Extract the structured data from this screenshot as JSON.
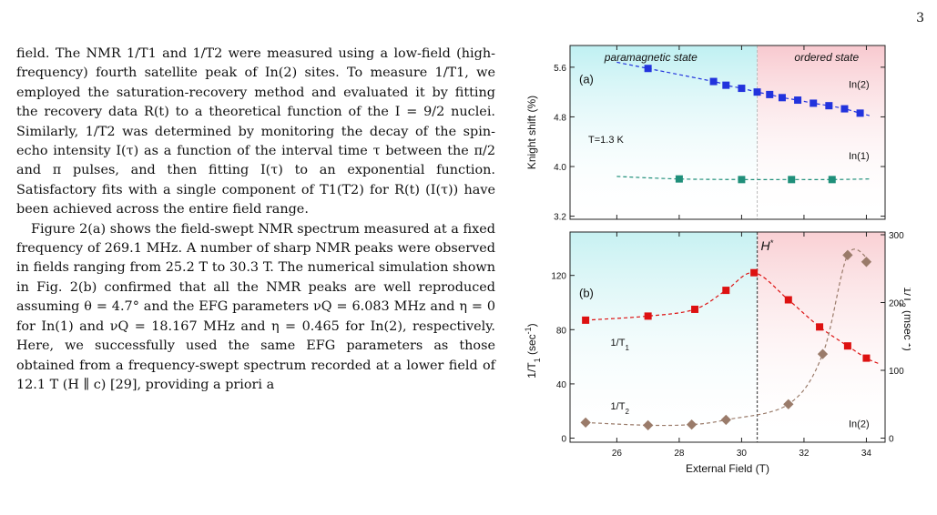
{
  "page_number": "3",
  "paragraphs": [
    "field. The NMR 1/T1 and 1/T2 were measured using a low-field (high-frequency) fourth satellite peak of In(2) sites. To measure 1/T1, we employed the saturation-recovery method and evaluated it by fitting the recovery data R(t) to a theoretical function of the I = 9/2 nuclei. Similarly, 1/T2 was determined by monitoring the decay of the spin-echo intensity I(τ) as a function of the interval time τ between the π/2 and π pulses, and then fitting I(τ) to an exponential function. Satisfactory fits with a single component of T1(T2) for R(t) (I(τ)) have been achieved across the entire field range.",
    "Figure 2(a) shows the field-swept NMR spectrum measured at a fixed frequency of 269.1 MHz. A number of sharp NMR peaks were observed in fields ranging from 25.2 T to 30.3 T. The numerical simulation shown in Fig. 2(b) confirmed that all the NMR peaks are well reproduced assuming θ = 4.7° and the EFG parameters νQ = 6.083 MHz and η = 0 for In(1) and νQ = 18.167 MHz and η = 0.465 for In(2), respectively. Here, we successfully used the same EFG parameters as those obtained from a frequency-swept spectrum recorded at a lower field of 12.1 T (H ∥ c) [29], providing a priori a"
  ],
  "chart_data": [
    {
      "type": "scatter",
      "panel": "(a)",
      "ylabel": "Knight shift (%)",
      "ylim": [
        3.15,
        5.95
      ],
      "yticks": [
        "3.2",
        "4.0",
        "4.8",
        "5.6"
      ],
      "xlim": [
        24.5,
        34.6
      ],
      "region_labels": [
        "paramagnetic state",
        "ordered state"
      ],
      "annotation": "T=1.3 K",
      "colors": {
        "in2": "#2233dd",
        "in1": "#1f8f7a"
      },
      "series": [
        {
          "name": "In(2)",
          "x": [
            27.0,
            29.1,
            29.5,
            30.0,
            30.5,
            30.9,
            31.3,
            31.8,
            32.3,
            32.8,
            33.3,
            33.8
          ],
          "y": [
            5.58,
            5.37,
            5.31,
            5.26,
            5.2,
            5.16,
            5.11,
            5.07,
            5.02,
            4.98,
            4.93,
            4.86
          ]
        },
        {
          "name": "In(1)",
          "x": [
            28.0,
            30.0,
            31.6,
            32.9
          ],
          "y": [
            3.8,
            3.79,
            3.79,
            3.79
          ]
        }
      ]
    },
    {
      "type": "scatter",
      "panel": "(b)",
      "xlabel": "External Field (T)",
      "ylabel": "1/T1 (sec-1)",
      "y2label": "1/T2 (msec-1)",
      "xticks": [
        "26",
        "28",
        "30",
        "32",
        "34"
      ],
      "yticks": [
        "0",
        "40",
        "80",
        "120"
      ],
      "y2ticks": [
        "0",
        "100",
        "200",
        "300"
      ],
      "xlim": [
        24.5,
        34.6
      ],
      "ylim": [
        -3,
        152
      ],
      "y2lim": [
        -6,
        304
      ],
      "marker_label": "H*",
      "marker_x": 30.5,
      "in_plot_label": "In(2)",
      "colors": {
        "t1": "#dd1111",
        "t2": "#9a7b6a"
      },
      "series": [
        {
          "name": "1/T1",
          "axis": "left",
          "x": [
            25.0,
            27.0,
            28.5,
            29.5,
            30.4,
            31.5,
            32.5,
            33.4,
            34.0
          ],
          "y": [
            87,
            90,
            95,
            109,
            122,
            102,
            82,
            68,
            59
          ]
        },
        {
          "name": "1/T2",
          "axis": "right",
          "x": [
            25.0,
            27.0,
            28.4,
            29.5,
            31.5,
            32.6,
            33.4,
            34.0
          ],
          "y": [
            23,
            19,
            20,
            27,
            50,
            124,
            270,
            260
          ]
        }
      ]
    }
  ]
}
